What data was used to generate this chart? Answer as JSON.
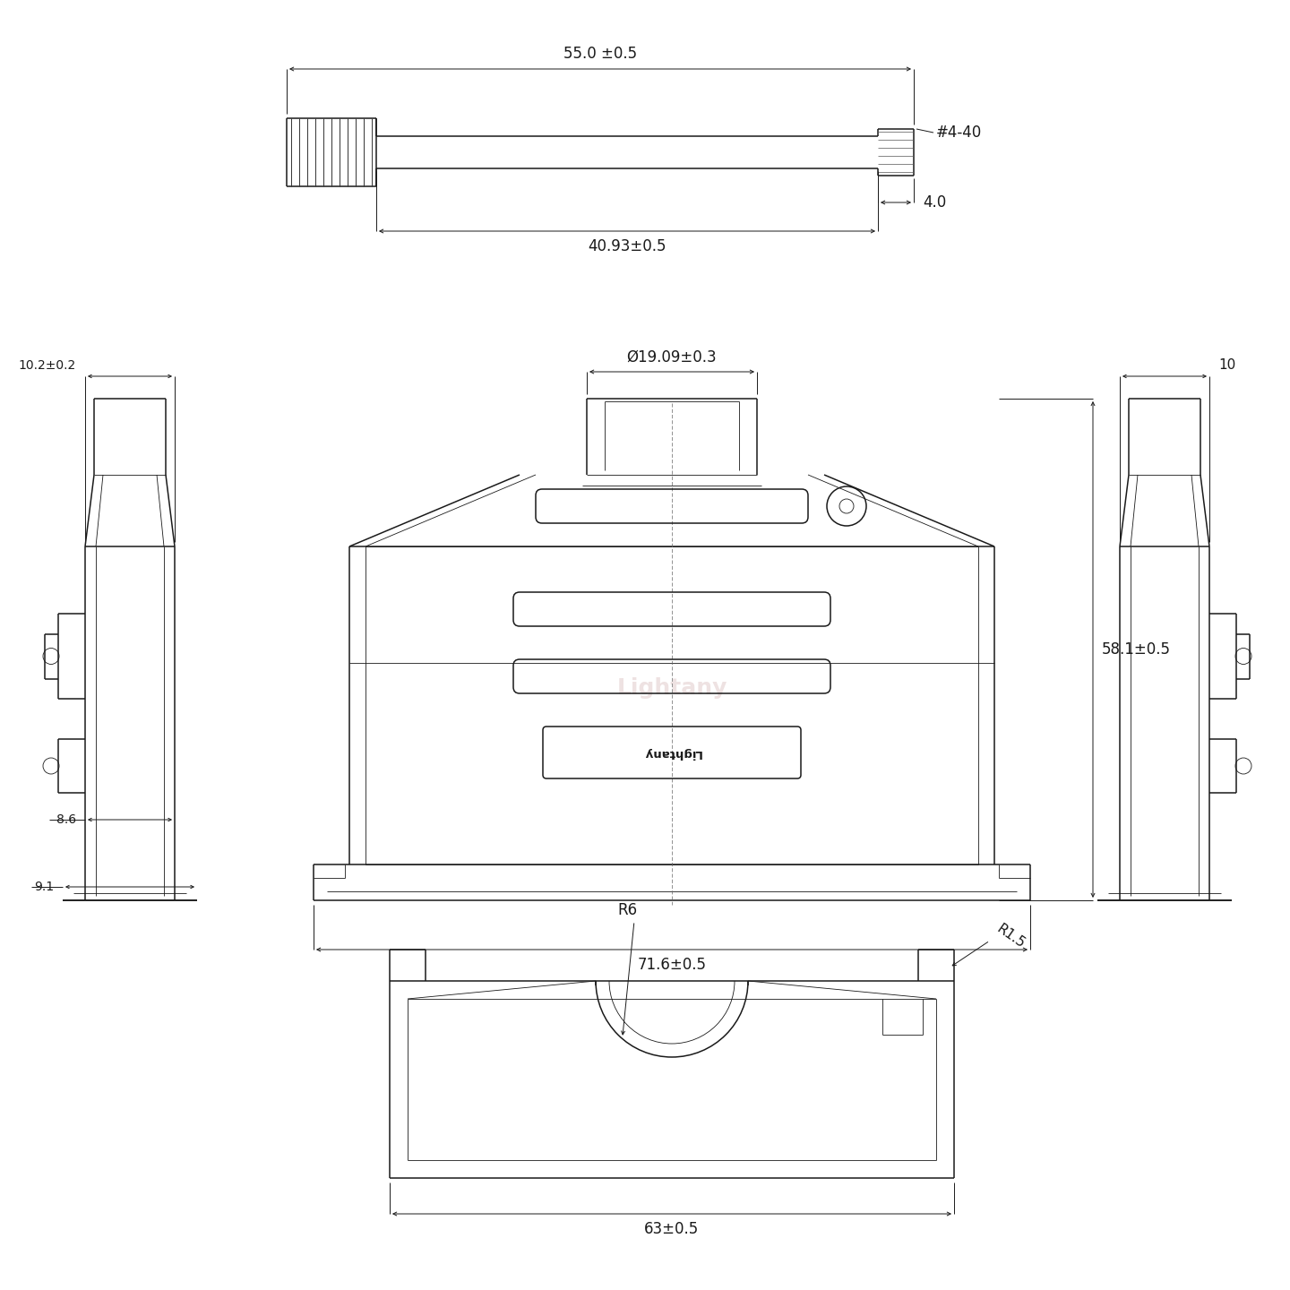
{
  "bg_color": "#ffffff",
  "line_color": "#1a1a1a",
  "dim_color": "#1a1a1a",
  "watermark_color": "#c8a0a0",
  "watermark_text": "Lightany",
  "dim_55": "55.0 ±0.5",
  "dim_4093": "40.93±0.5",
  "dim_4": "4.0",
  "dim_440": "#4-40",
  "dim_1909": "Ø19.09±0.3",
  "dim_581": "58.1±0.5",
  "dim_716": "71.6±0.5",
  "dim_102": "10.2±0.2",
  "dim_86": "8.6",
  "dim_91": "9.1",
  "dim_10": "10",
  "dim_r6": "R6",
  "dim_r15": "R1.5",
  "dim_63": "63±0.5",
  "font_size_dim": 12,
  "font_size_small": 10
}
